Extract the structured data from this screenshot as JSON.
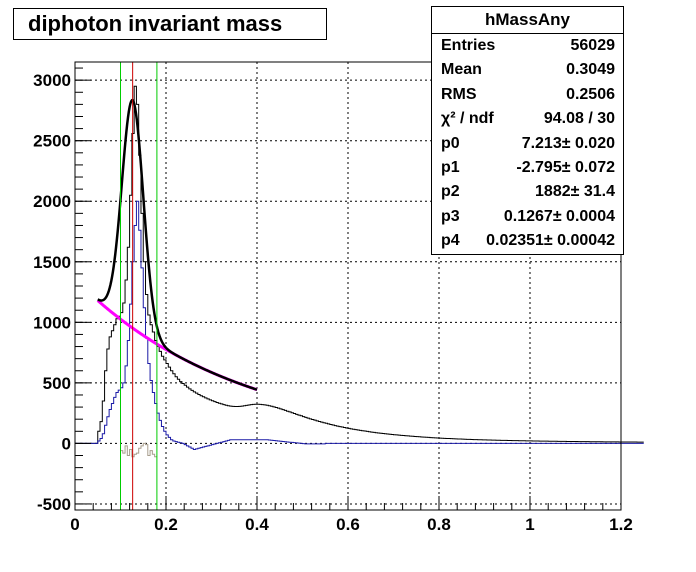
{
  "title": "diphoton invariant mass",
  "stats": {
    "name": "hMassAny",
    "rows": [
      {
        "key": "Entries",
        "value": "56029"
      },
      {
        "key": "Mean",
        "value": "0.3049"
      },
      {
        "key": "RMS",
        "value": "0.2506"
      },
      {
        "key": "χ² / ndf",
        "value": "94.08 / 30"
      },
      {
        "key": "p0",
        "value": "7.213± 0.020"
      },
      {
        "key": "p1",
        "value": "-2.795± 0.072"
      },
      {
        "key": "p2",
        "value": "1882± 31.4"
      },
      {
        "key": "p3",
        "value": "0.1267± 0.0004"
      },
      {
        "key": "p4",
        "value": "0.02351± 0.00042"
      }
    ]
  },
  "chart_data": {
    "type": "histogram",
    "title": "diphoton invariant mass",
    "xlim": [
      0,
      1.2
    ],
    "ylim": [
      -550,
      3150
    ],
    "xticks": [
      0,
      0.2,
      0.4,
      0.6,
      0.8,
      1,
      1.2
    ],
    "xtick_labels": [
      "0",
      "0.2",
      "0.4",
      "0.6",
      "0.8",
      "1",
      "1.2"
    ],
    "yticks": [
      -500,
      0,
      500,
      1000,
      1500,
      2000,
      2500,
      3000
    ],
    "ytick_labels": [
      "-500",
      "0",
      "500",
      "1000",
      "1500",
      "2000",
      "2500",
      "3000"
    ],
    "grid": true,
    "colors": {
      "all": "#000000",
      "subtracted": "#1a1aa6",
      "signal_region": "#a89e8e",
      "fit": "#000000",
      "background": "#ff00ff",
      "window": "#00cc00",
      "peak": "#cc0000"
    },
    "vertical_lines": [
      {
        "x": 0.1,
        "color": "#00cc00"
      },
      {
        "x": 0.1267,
        "color": "#cc0000"
      },
      {
        "x": 0.18,
        "color": "#00cc00"
      }
    ],
    "series": [
      {
        "role": "all",
        "bin_width": 0.005,
        "x_start": 0.0,
        "values": [
          0,
          0,
          0,
          0,
          0,
          0,
          0,
          0,
          0,
          0,
          100,
          180,
          350,
          600,
          780,
          880,
          930,
          980,
          1030,
          1050,
          1080,
          1160,
          1350,
          1620,
          2050,
          2560,
          2950,
          2800,
          2380,
          1900,
          1500,
          1230,
          1060,
          980,
          920,
          850,
          800,
          760,
          720,
          690,
          660,
          630,
          600,
          575,
          550,
          530,
          510,
          495,
          480,
          465,
          450,
          438,
          426,
          415,
          404,
          394,
          385,
          376,
          368,
          360,
          352,
          345,
          338,
          332,
          326,
          320,
          315,
          311,
          308,
          306,
          305,
          305,
          306,
          308,
          311,
          314,
          317,
          320,
          322,
          323,
          323,
          322,
          320,
          318,
          315,
          311,
          307,
          302,
          297,
          291,
          285,
          279,
          273,
          266,
          260,
          253,
          247,
          240,
          234,
          228,
          221,
          215,
          209,
          203,
          197,
          192,
          186,
          181,
          176,
          171,
          166,
          161,
          156,
          152,
          147,
          143,
          139,
          135,
          131,
          127,
          124,
          120,
          117,
          114,
          111,
          108,
          105,
          102,
          99,
          96,
          93,
          91,
          88,
          86,
          84,
          82,
          80,
          78,
          76,
          74,
          72,
          70,
          68,
          66,
          65,
          63,
          62,
          60,
          59,
          57,
          56,
          55,
          53,
          52,
          51,
          50,
          48,
          47,
          46,
          45,
          44,
          43,
          42,
          41,
          40,
          39,
          38,
          37,
          36,
          36,
          35,
          34,
          33,
          33,
          32,
          31,
          31,
          30,
          30,
          29,
          29,
          28,
          28,
          27,
          27,
          26,
          26,
          25,
          25,
          25,
          24,
          24,
          23,
          23,
          23,
          22,
          22,
          22,
          21,
          21,
          21,
          20,
          20,
          20,
          19,
          19,
          19,
          19,
          18,
          18,
          18,
          18,
          17,
          17,
          17,
          17,
          16,
          16,
          16,
          16,
          16,
          15,
          15,
          15,
          15,
          15,
          14,
          14,
          14,
          14,
          14,
          14,
          13,
          13,
          13,
          13,
          13,
          13,
          13,
          12,
          12,
          12,
          12,
          12,
          12,
          12,
          12,
          11,
          11,
          11
        ]
      },
      {
        "role": "subtracted",
        "bin_width": 0.005,
        "x_start": 0.0,
        "values": [
          0,
          0,
          0,
          0,
          0,
          0,
          0,
          0,
          0,
          0,
          20,
          40,
          80,
          150,
          220,
          280,
          330,
          380,
          420,
          440,
          460,
          500,
          640,
          850,
          1150,
          1500,
          1800,
          2000,
          1760,
          1450,
          1120,
          870,
          660,
          520,
          420,
          330,
          250,
          190,
          140,
          100,
          70,
          50,
          30,
          20,
          15,
          10,
          5,
          0,
          -10,
          -20,
          -30,
          -40,
          -50,
          -45,
          -40,
          -35,
          -30,
          -25,
          -20,
          -15,
          -10,
          -5,
          0,
          5,
          10,
          15,
          20,
          25,
          30,
          30,
          30,
          30,
          30,
          30,
          30,
          30,
          30,
          30,
          30,
          30,
          30,
          30,
          30,
          30,
          30,
          28,
          26,
          24,
          22,
          20,
          18,
          16,
          14,
          12,
          10,
          8,
          6,
          4,
          2,
          0,
          -2,
          -4,
          -4,
          -4,
          -4,
          -4,
          -4,
          -4,
          -4,
          -4,
          0,
          0,
          0,
          0,
          0,
          0,
          0,
          0,
          0,
          0,
          0,
          0,
          0,
          0,
          0,
          0,
          0,
          0,
          0,
          0,
          0,
          0,
          0,
          0,
          0,
          0,
          0,
          0,
          0,
          0,
          0,
          0,
          0,
          0,
          0,
          0,
          0,
          0,
          0,
          0,
          0,
          0,
          0,
          0,
          0,
          0,
          0,
          0,
          0,
          0,
          0,
          0,
          0,
          0,
          0,
          0,
          0,
          0,
          0,
          0,
          0,
          0,
          0,
          0,
          0,
          0,
          0,
          0,
          0,
          0,
          0,
          0,
          0,
          0,
          0,
          0,
          0,
          0,
          0,
          0,
          0,
          0,
          0,
          0,
          0,
          0,
          0,
          0,
          0,
          0,
          0,
          0,
          0,
          0,
          0,
          0,
          0,
          0,
          0,
          0,
          0,
          0,
          0,
          0,
          0,
          0,
          0,
          0,
          0,
          0,
          0,
          0,
          0,
          0,
          0,
          0,
          0,
          0,
          0,
          0,
          0,
          0,
          0,
          0,
          0,
          0,
          0,
          0,
          0,
          0,
          0,
          0,
          0,
          0,
          0,
          0,
          0,
          0,
          0,
          0
        ]
      },
      {
        "role": "signal_region",
        "bin_width": 0.005,
        "x_start": 0.1,
        "values": [
          -60,
          -80,
          -20,
          -100,
          -50,
          -110,
          -90,
          -80,
          -40,
          -20,
          0,
          -10,
          -100,
          -60,
          -90,
          -110
        ]
      }
    ],
    "fit": {
      "role": "fit",
      "x_range": [
        0.05,
        0.4
      ],
      "p0": 7.213,
      "p1": -2.795,
      "p2": 1882,
      "p3": 0.1267,
      "p4": 0.02351
    },
    "background_fit": {
      "role": "background",
      "x_range": [
        0.05,
        0.4
      ],
      "p0": 7.213,
      "p1": -2.795
    }
  }
}
